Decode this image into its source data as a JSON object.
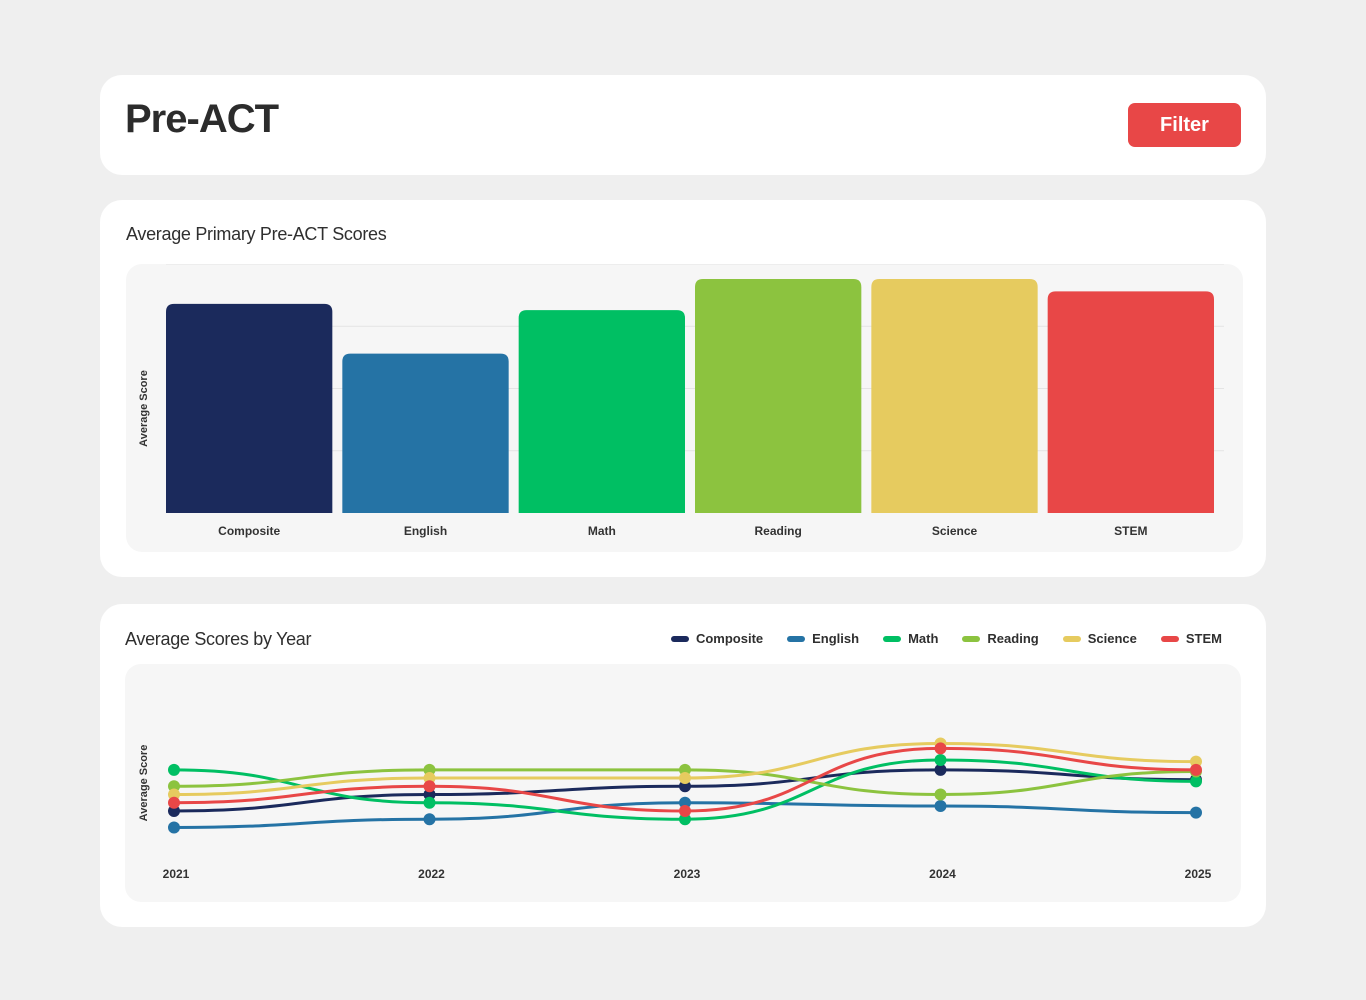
{
  "header": {
    "title": "Pre-ACT",
    "filter_label": "Filter"
  },
  "colors": {
    "Composite": "#1b2a5c",
    "English": "#2573a5",
    "Math": "#00bf63",
    "Reading": "#8cc33f",
    "Science": "#e6cb5f",
    "STEM": "#e84747",
    "accent": "#e84747"
  },
  "bar_chart": {
    "title": "Average Primary Pre-ACT Scores",
    "ylabel": "Average Score"
  },
  "line_chart": {
    "title": "Average Scores by Year",
    "ylabel": "Average Score",
    "legend": [
      "Composite",
      "English",
      "Math",
      "Reading",
      "Science",
      "STEM"
    ]
  },
  "chart_data": [
    {
      "type": "bar",
      "title": "Average Primary Pre-ACT Scores",
      "xlabel": "",
      "ylabel": "Average Score",
      "categories": [
        "Composite",
        "English",
        "Math",
        "Reading",
        "Science",
        "STEM"
      ],
      "values": [
        16.8,
        12.8,
        16.3,
        18.8,
        18.8,
        17.8
      ],
      "ylim": [
        0,
        20
      ],
      "grid": true
    },
    {
      "type": "line",
      "title": "Average Scores by Year",
      "xlabel": "",
      "ylabel": "Average Score",
      "x": [
        "2021",
        "2022",
        "2023",
        "2024",
        "2025"
      ],
      "ylim": [
        0,
        13
      ],
      "legend_position": "top-right",
      "series": [
        {
          "name": "Composite",
          "values": [
            4.8,
            5.8,
            6.3,
            7.3,
            6.7
          ]
        },
        {
          "name": "English",
          "values": [
            3.8,
            4.3,
            5.3,
            5.1,
            4.7
          ]
        },
        {
          "name": "Math",
          "values": [
            7.3,
            5.3,
            4.3,
            7.9,
            6.6
          ]
        },
        {
          "name": "Reading",
          "values": [
            6.3,
            7.3,
            7.3,
            5.8,
            7.2
          ]
        },
        {
          "name": "Science",
          "values": [
            5.8,
            6.8,
            6.8,
            8.9,
            7.8
          ]
        },
        {
          "name": "STEM",
          "values": [
            5.3,
            6.3,
            4.8,
            8.6,
            7.3
          ]
        }
      ]
    }
  ]
}
